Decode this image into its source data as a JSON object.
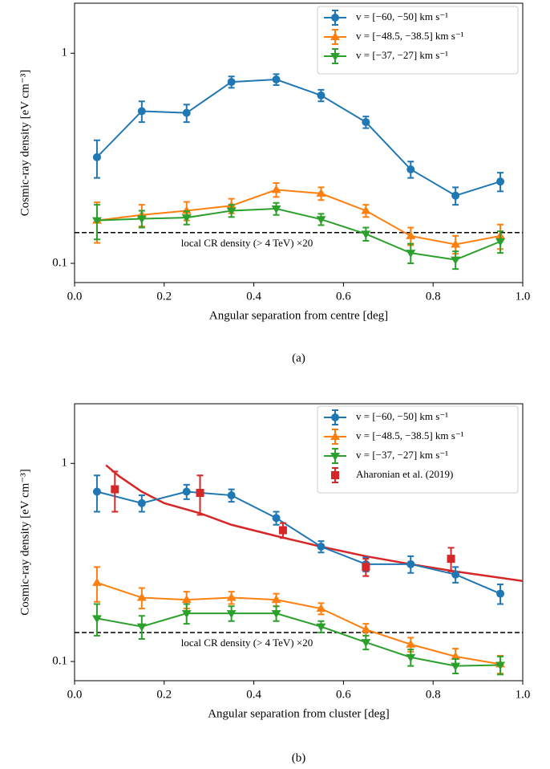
{
  "chart_data": [
    {
      "type": "line",
      "caption": "(a)",
      "xlabel": "Angular separation from centre [deg]",
      "ylabel": "Cosmic-ray density [eV cm⁻³]",
      "x": [
        0.05,
        0.15,
        0.25,
        0.35,
        0.45,
        0.55,
        0.65,
        0.75,
        0.85,
        0.95
      ],
      "xlim": [
        0,
        1
      ],
      "xticks": [
        {
          "value": 0,
          "label": "0.0"
        },
        0.2,
        0.4,
        0.6,
        0.8,
        {
          "value": 1,
          "label": "1.0"
        }
      ],
      "ylim": [
        0.081,
        1.73
      ],
      "yticks": [
        0.1,
        1
      ],
      "log_y": true,
      "legend": "upper right",
      "hline": {
        "value": 0.14,
        "label": "local CR density (> 4 TeV) ×20"
      },
      "series": [
        {
          "name": "v = [−60, −50] km s⁻¹",
          "color": "#1f77b4",
          "marker": "circle",
          "values": [
            0.32,
            0.53,
            0.52,
            0.73,
            0.75,
            0.63,
            0.47,
            0.28,
            0.21,
            0.245
          ],
          "errors": [
            0.065,
            0.06,
            0.05,
            0.045,
            0.045,
            0.04,
            0.03,
            0.025,
            0.02,
            0.025
          ]
        },
        {
          "name": "v = [−48.5, −38.5] km s⁻¹",
          "color": "#ff7f0e",
          "marker": "triangle-up",
          "values": [
            0.16,
            0.17,
            0.178,
            0.188,
            0.224,
            0.215,
            0.178,
            0.135,
            0.123,
            0.135
          ],
          "errors": [
            0.035,
            0.02,
            0.018,
            0.015,
            0.017,
            0.015,
            0.012,
            0.013,
            0.012,
            0.018
          ]
        },
        {
          "name": "v = [−37, −27] km s⁻¹",
          "color": "#2ca02c",
          "marker": "triangle-down",
          "values": [
            0.16,
            0.163,
            0.165,
            0.178,
            0.182,
            0.162,
            0.138,
            0.112,
            0.104,
            0.127
          ],
          "errors": [
            0.03,
            0.015,
            0.012,
            0.012,
            0.012,
            0.01,
            0.01,
            0.012,
            0.01,
            0.015
          ]
        }
      ]
    },
    {
      "type": "line",
      "caption": "(b)",
      "xlabel": "Angular separation from cluster [deg]",
      "ylabel": "Cosmic-ray density [eV cm⁻³]",
      "x": [
        0.05,
        0.15,
        0.25,
        0.35,
        0.45,
        0.55,
        0.65,
        0.75,
        0.85,
        0.95
      ],
      "xlim": [
        0,
        1
      ],
      "xticks": [
        {
          "value": 0,
          "label": "0.0"
        },
        0.2,
        0.4,
        0.6,
        0.8,
        {
          "value": 1,
          "label": "1.0"
        }
      ],
      "ylim": [
        0.08,
        2.0
      ],
      "yticks": [
        0.1,
        1
      ],
      "log_y": true,
      "legend": "upper right",
      "hline": {
        "value": 0.14,
        "label": "local CR density (> 4 TeV) ×20"
      },
      "series": [
        {
          "name": "v = [−60, −50] km s⁻¹",
          "color": "#1f77b4",
          "marker": "circle",
          "values": [
            0.72,
            0.63,
            0.72,
            0.69,
            0.53,
            0.38,
            0.31,
            0.31,
            0.275,
            0.22
          ],
          "errors": [
            0.15,
            0.06,
            0.06,
            0.05,
            0.04,
            0.025,
            0.025,
            0.03,
            0.025,
            0.025
          ]
        },
        {
          "name": "v = [−48.5, −38.5] km s⁻¹",
          "color": "#ff7f0e",
          "marker": "triangle-up",
          "values": [
            0.25,
            0.21,
            0.205,
            0.21,
            0.205,
            0.185,
            0.145,
            0.122,
            0.106,
            0.097
          ],
          "errors": [
            0.05,
            0.025,
            0.02,
            0.015,
            0.015,
            0.012,
            0.01,
            0.01,
            0.01,
            0.01
          ]
        },
        {
          "name": "v = [−37, −27] km s⁻¹",
          "color": "#2ca02c",
          "marker": "triangle-down",
          "values": [
            0.165,
            0.15,
            0.175,
            0.175,
            0.175,
            0.15,
            0.125,
            0.105,
            0.095,
            0.096
          ],
          "errors": [
            0.03,
            0.02,
            0.02,
            0.015,
            0.015,
            0.01,
            0.01,
            0.01,
            0.008,
            0.01
          ]
        },
        {
          "name": "Aharonian et al. (2019)",
          "color": "#d62728",
          "marker": "square",
          "noline": true,
          "x": [
            0.09,
            0.28,
            0.465,
            0.65,
            0.84
          ],
          "values": [
            0.74,
            0.71,
            0.46,
            0.3,
            0.33
          ],
          "errors": [
            0.17,
            0.16,
            0.04,
            0.03,
            0.045
          ]
        }
      ],
      "curve": {
        "color": "#d62728",
        "x": [
          0.07,
          0.1,
          0.15,
          0.2,
          0.28,
          0.35,
          0.45,
          0.55,
          0.65,
          0.75,
          0.85,
          1.0
        ],
        "values": [
          0.98,
          0.86,
          0.72,
          0.63,
          0.56,
          0.49,
          0.43,
          0.38,
          0.34,
          0.31,
          0.285,
          0.255
        ]
      }
    }
  ]
}
